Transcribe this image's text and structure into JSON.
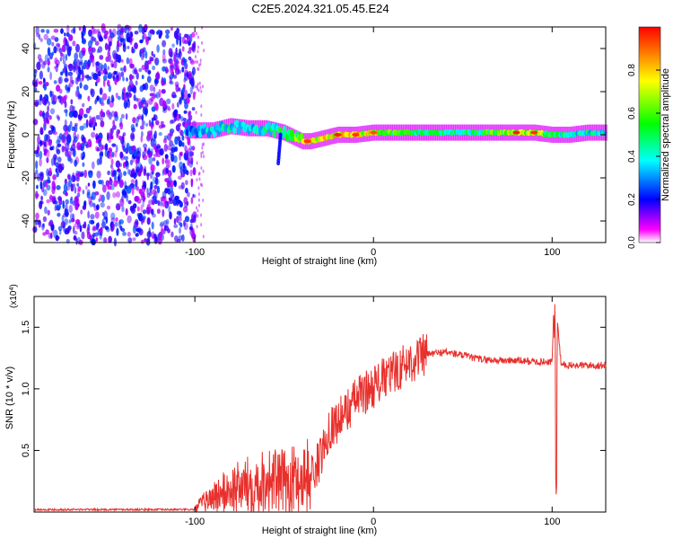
{
  "title": "C2E5.2024.321.05.45.E24",
  "chart_data": [
    {
      "type": "heatmap",
      "title": "C2E5.2024.321.05.45.E24",
      "xlabel": "Height of straight line (km)",
      "ylabel": "Frequency (Hz)",
      "xlim": [
        -190,
        130
      ],
      "ylim": [
        -50,
        50
      ],
      "xticks": [
        -100,
        0,
        100
      ],
      "xtick_labels": [
        "-100",
        "0",
        "100"
      ],
      "yticks": [
        -40,
        -20,
        0,
        20,
        40
      ],
      "ytick_labels": [
        "-40",
        "-20",
        "0",
        "20",
        "40"
      ],
      "noise_region_x": [
        -190,
        -100
      ],
      "ridge": {
        "x": [
          -105,
          -90,
          -80,
          -70,
          -60,
          -50,
          -45,
          -40,
          -35,
          -30,
          -20,
          -10,
          0,
          10,
          20,
          40,
          60,
          80,
          90,
          100,
          110,
          120,
          130
        ],
        "freq_hz": [
          2,
          2,
          4,
          3,
          3,
          1,
          -1,
          -3,
          -3,
          -2,
          0,
          0,
          1,
          1,
          1,
          1,
          1,
          1,
          1,
          0,
          0,
          1,
          1
        ],
        "amplitude": [
          0.35,
          0.45,
          0.5,
          0.45,
          0.5,
          0.6,
          0.7,
          0.85,
          0.9,
          0.85,
          0.95,
          0.9,
          0.9,
          0.75,
          0.6,
          0.55,
          0.6,
          0.85,
          0.9,
          0.6,
          0.5,
          0.5,
          0.5
        ]
      },
      "colorbar": {
        "label": "Normalized spectral amplitude",
        "range": [
          0,
          1
        ],
        "ticks": [
          0.0,
          0.2,
          0.4,
          0.6,
          0.8
        ],
        "tick_labels": [
          "0.0",
          "0.2",
          "0.4",
          "0.6",
          "0.8"
        ],
        "colors": [
          "#ffffff",
          "#ff00ff",
          "#0000ff",
          "#00ffff",
          "#00ff00",
          "#ffff00",
          "#ff0000"
        ]
      }
    },
    {
      "type": "line",
      "xlabel": "Height of straight line (km)",
      "ylabel": "SNR (10 * v/v)",
      "y_multiplier_label": "(x10",
      "y_multiplier_exp": "4",
      "y_multiplier_close": ")",
      "xlim": [
        -190,
        130
      ],
      "ylim": [
        0,
        1.75
      ],
      "xticks": [
        -100,
        0,
        100
      ],
      "xtick_labels": [
        "-100",
        "0",
        "100"
      ],
      "yticks": [
        0.5,
        1.0,
        1.5
      ],
      "ytick_labels": [
        "0.5",
        "1.0",
        "1.5"
      ],
      "series": [
        {
          "color": "#e8302c",
          "x": [
            -190,
            -100,
            -97,
            -90,
            -80,
            -70,
            -60,
            -50,
            -40,
            -35,
            -30,
            -25,
            -20,
            -15,
            -10,
            -5,
            0,
            10,
            20,
            30,
            40,
            50,
            60,
            70,
            80,
            90,
            100,
            101,
            102,
            103,
            105,
            110,
            120,
            130
          ],
          "y": [
            0.02,
            0.02,
            0.06,
            0.12,
            0.18,
            0.22,
            0.26,
            0.24,
            0.28,
            0.3,
            0.42,
            0.68,
            0.74,
            0.82,
            0.92,
            0.97,
            1.02,
            1.12,
            1.22,
            1.28,
            1.3,
            1.27,
            1.24,
            1.23,
            1.23,
            1.22,
            1.22,
            1.7,
            0.1,
            1.55,
            1.2,
            1.19,
            1.19,
            1.19
          ]
        }
      ]
    }
  ]
}
